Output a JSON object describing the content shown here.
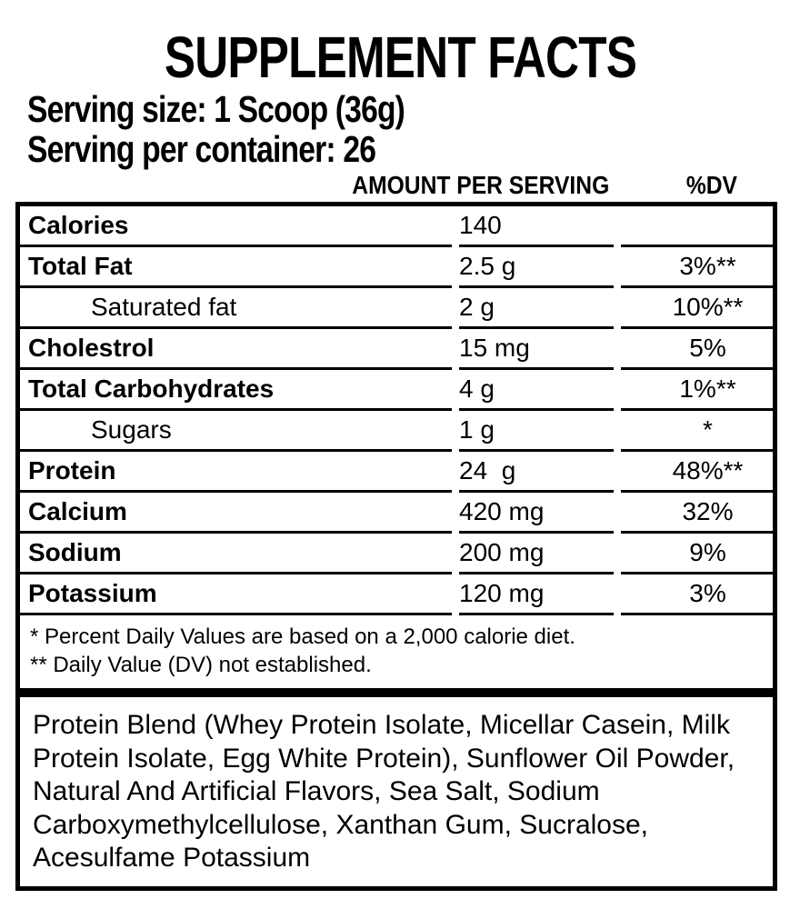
{
  "title": "SUPPLEMENT FACTS",
  "serving": {
    "size_label": "Serving size: 1 Scoop (36g)",
    "container_label": "Serving per container: 26"
  },
  "columns": {
    "amount": "AMOUNT PER SERVING",
    "dv": "%DV"
  },
  "nutrients": [
    {
      "name": "Calories",
      "amount": "140",
      "dv": "",
      "indent": false,
      "bold": true
    },
    {
      "name": "Total Fat",
      "amount": "2.5 g",
      "dv": "3%**",
      "indent": false,
      "bold": true
    },
    {
      "name": "Saturated fat",
      "amount": "2 g",
      "dv": "10%**",
      "indent": true,
      "bold": false
    },
    {
      "name": "Cholestrol",
      "amount": "15 mg",
      "dv": "5%",
      "indent": false,
      "bold": true
    },
    {
      "name": "Total Carbohydrates",
      "amount": "4 g",
      "dv": "1%**",
      "indent": false,
      "bold": true
    },
    {
      "name": "Sugars",
      "amount": "1 g",
      "dv": "*",
      "indent": true,
      "bold": false
    },
    {
      "name": "Protein",
      "amount": "24  g",
      "dv": "48%**",
      "indent": false,
      "bold": true
    },
    {
      "name": "Calcium",
      "amount": "420 mg",
      "dv": "32%",
      "indent": false,
      "bold": true
    },
    {
      "name": "Sodium",
      "amount": "200 mg",
      "dv": "9%",
      "indent": false,
      "bold": true
    },
    {
      "name": "Potassium",
      "amount": "120 mg",
      "dv": "3%",
      "indent": false,
      "bold": true
    }
  ],
  "footnotes": [
    "* Percent Daily Values are based on a 2,000 calorie diet.",
    "** Daily Value (DV) not established."
  ],
  "ingredients": "Protein Blend (Whey Protein Isolate, Micellar Casein, Milk Protein Isolate, Egg White Protein), Sunflower Oil Powder, Natural And Artificial Flavors, Sea Salt, Sodium Carboxymethylcellulose, Xanthan Gum, Sucralose, Acesulfame Potassium",
  "colors": {
    "text": "#000000",
    "background": "#ffffff",
    "border": "#000000"
  }
}
